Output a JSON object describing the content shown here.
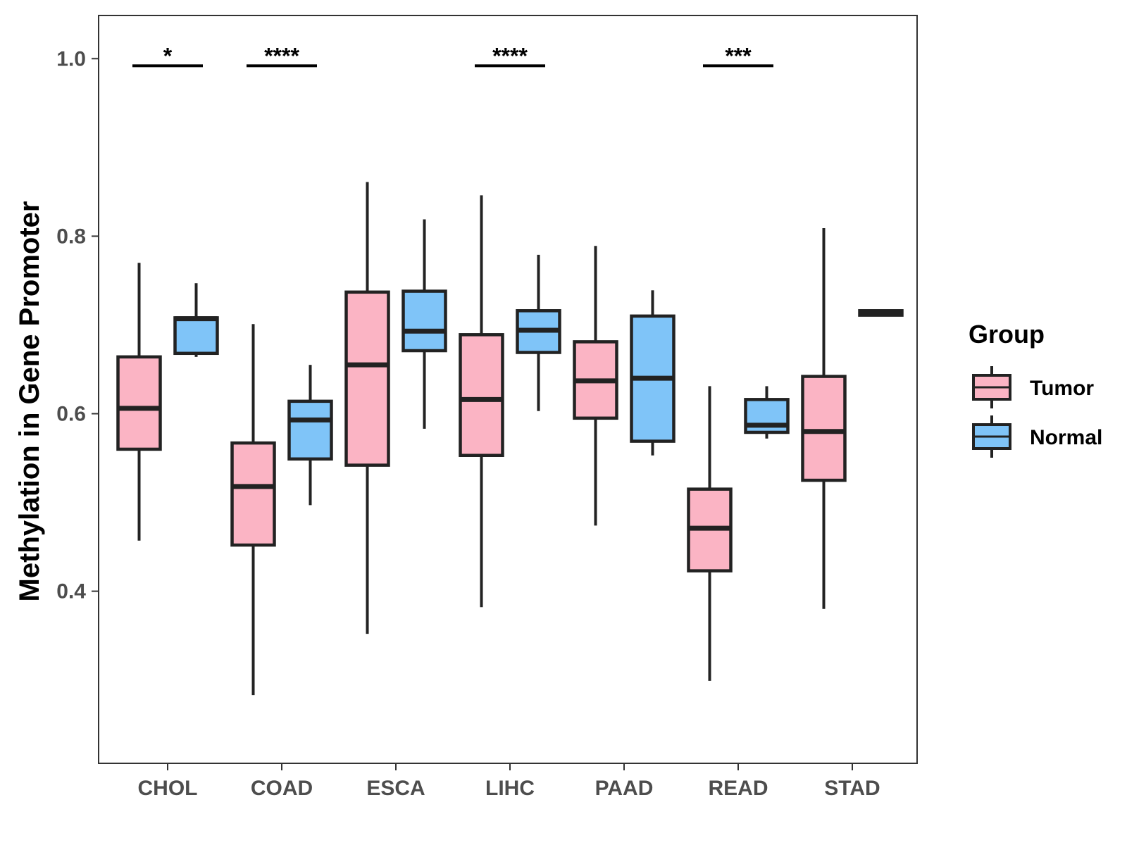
{
  "chart_data": {
    "type": "box",
    "title": "",
    "xlabel": "",
    "ylabel": "Methylation in Gene Promoter",
    "ylim": [
      0.21,
      1.05
    ],
    "yticks": [
      "0.4",
      "0.6",
      "0.8",
      "1.0"
    ],
    "ytick_values": [
      0.4,
      0.6,
      0.8,
      1.0
    ],
    "categories": [
      "CHOL",
      "COAD",
      "ESCA",
      "LIHC",
      "PAAD",
      "READ",
      "STAD"
    ],
    "legend": {
      "title": "Group",
      "position": "right",
      "entries": [
        {
          "name": "Tumor",
          "color": "#fbb4c4"
        },
        {
          "name": "Normal",
          "color": "#7fc4f8"
        }
      ]
    },
    "series": [
      {
        "name": "Tumor",
        "color": "#fbb4c4",
        "boxes": [
          {
            "category": "CHOL",
            "whisker_low": 0.457,
            "q1": 0.56,
            "median": 0.606,
            "q3": 0.664,
            "whisker_high": 0.77
          },
          {
            "category": "COAD",
            "whisker_low": 0.283,
            "q1": 0.452,
            "median": 0.518,
            "q3": 0.567,
            "whisker_high": 0.701
          },
          {
            "category": "ESCA",
            "whisker_low": 0.352,
            "q1": 0.542,
            "median": 0.655,
            "q3": 0.737,
            "whisker_high": 0.861
          },
          {
            "category": "LIHC",
            "whisker_low": 0.382,
            "q1": 0.553,
            "median": 0.616,
            "q3": 0.689,
            "whisker_high": 0.846
          },
          {
            "category": "PAAD",
            "whisker_low": 0.474,
            "q1": 0.595,
            "median": 0.637,
            "q3": 0.681,
            "whisker_high": 0.789
          },
          {
            "category": "READ",
            "whisker_low": 0.299,
            "q1": 0.423,
            "median": 0.471,
            "q3": 0.515,
            "whisker_high": 0.631
          },
          {
            "category": "STAD",
            "whisker_low": 0.38,
            "q1": 0.525,
            "median": 0.58,
            "q3": 0.642,
            "whisker_high": 0.809
          }
        ]
      },
      {
        "name": "Normal",
        "color": "#7fc4f8",
        "boxes": [
          {
            "category": "CHOL",
            "whisker_low": 0.664,
            "q1": 0.668,
            "median": 0.707,
            "q3": 0.708,
            "whisker_high": 0.747
          },
          {
            "category": "COAD",
            "whisker_low": 0.497,
            "q1": 0.549,
            "median": 0.593,
            "q3": 0.614,
            "whisker_high": 0.655
          },
          {
            "category": "ESCA",
            "whisker_low": 0.583,
            "q1": 0.671,
            "median": 0.693,
            "q3": 0.738,
            "whisker_high": 0.819
          },
          {
            "category": "LIHC",
            "whisker_low": 0.603,
            "q1": 0.669,
            "median": 0.694,
            "q3": 0.716,
            "whisker_high": 0.779
          },
          {
            "category": "PAAD",
            "whisker_low": 0.553,
            "q1": 0.569,
            "median": 0.64,
            "q3": 0.71,
            "whisker_high": 0.739
          },
          {
            "category": "READ",
            "whisker_low": 0.572,
            "q1": 0.579,
            "median": 0.587,
            "q3": 0.616,
            "whisker_high": 0.631
          },
          {
            "category": "STAD",
            "whisker_low": 0.711,
            "q1": 0.711,
            "median": 0.714,
            "q3": 0.716,
            "whisker_high": 0.717
          }
        ]
      }
    ],
    "significance": [
      {
        "category": "CHOL",
        "label": "*"
      },
      {
        "category": "COAD",
        "label": "****"
      },
      {
        "category": "LIHC",
        "label": "****"
      },
      {
        "category": "READ",
        "label": "***"
      }
    ],
    "significance_level": 0.992,
    "grid": false
  }
}
